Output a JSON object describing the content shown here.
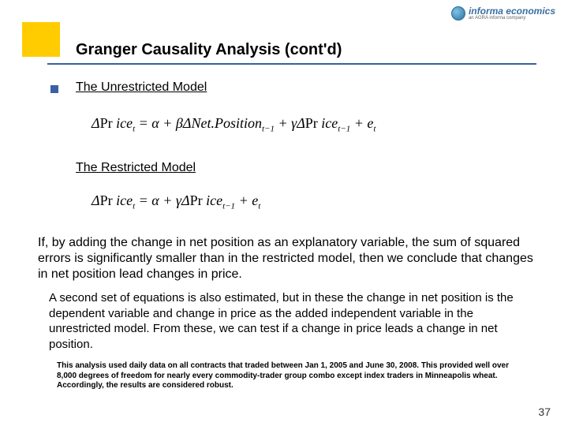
{
  "logo": {
    "name": "informa economics",
    "sub": "an AGRA informa company"
  },
  "title": "Granger Causality Analysis (cont'd)",
  "section1": "The Unrestricted Model",
  "eq1_html": "Δ<span class='rm'>Pr</span> <i>ice</i><sub>t</sub> = <i>α</i> + <i>β</i>Δ<i>Net</i>.<i>Position</i><sub>t−1</sub> + <i>γ</i>Δ<span class='rm'>Pr</span> <i>ice</i><sub>t−1</sub> + <i>e</i><sub>t</sub>",
  "section2": "The Restricted Model",
  "eq2_html": "Δ<span class='rm'>Pr</span> <i>ice</i><sub>t</sub> = <i>α</i> + <i>γ</i>Δ<span class='rm'>Pr</span> <i>ice</i><sub>t−1</sub> + <i>e</i><sub>t</sub>",
  "para1": "If, by adding the change in net position as an explanatory variable, the sum of squared errors is significantly smaller than in the restricted model, then we conclude that changes in net position lead changes in price.",
  "para2": "A second set of equations is also estimated, but in these the change in net position is the dependent variable and change in price as the added independent variable in the unrestricted model.  From these, we can test if a change in price leads a change in net position.",
  "footnote": "This analysis used daily data on all contracts that traded between Jan 1, 2005 and June 30, 2008. This provided well over 8,000 degrees of freedom for nearly every commodity-trader group combo except index traders in Minneapolis wheat.  Accordingly, the results are considered robust.",
  "page": "37",
  "colors": {
    "accent": "#ffcc00",
    "underline": "#3a5fa5",
    "bullet": "#3a5fa5",
    "logo_text": "#3a6fa0"
  }
}
